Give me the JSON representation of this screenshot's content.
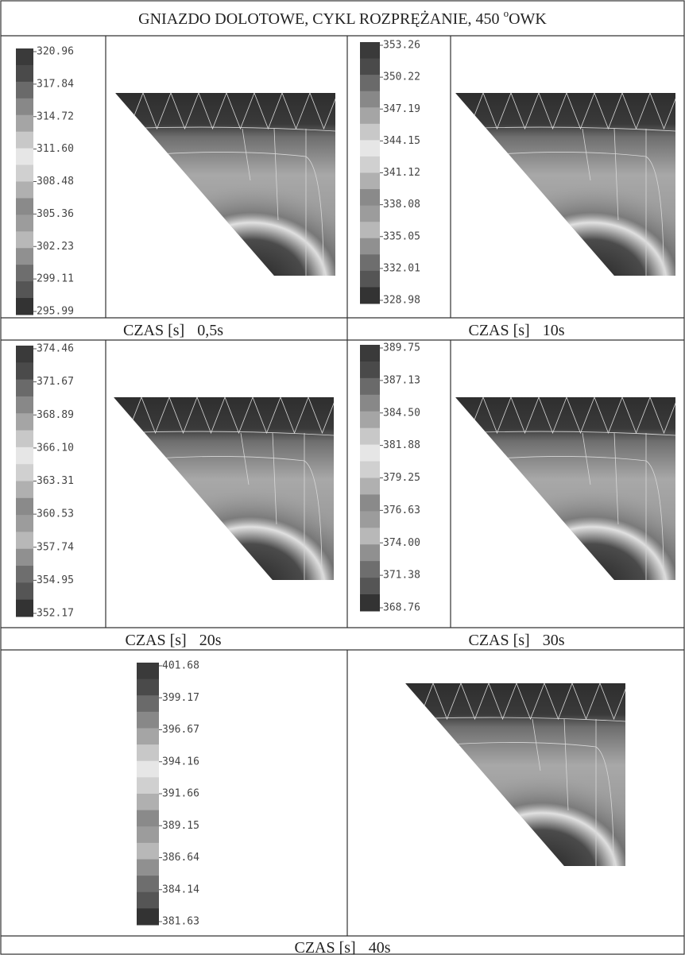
{
  "title": {
    "text": "GNIAZDO DOLOTOWE, CYKL ROZPRĘŻANIE, 450 ",
    "degree": "o",
    "unit": "OWK"
  },
  "caption_label": "CZAS [s]",
  "panels": [
    {
      "ticks": [
        "320.96",
        "317.84",
        "314.72",
        "311.60",
        "308.48",
        "305.36",
        "302.23",
        "299.11",
        "295.99"
      ],
      "time": "0,5s"
    },
    {
      "ticks": [
        "353.26",
        "350.22",
        "347.19",
        "344.15",
        "341.12",
        "338.08",
        "335.05",
        "332.01",
        "328.98"
      ],
      "time": "10s"
    },
    {
      "ticks": [
        "374.46",
        "371.67",
        "368.89",
        "366.10",
        "363.31",
        "360.53",
        "357.74",
        "354.95",
        "352.17"
      ],
      "time": "20s"
    },
    {
      "ticks": [
        "389.75",
        "387.13",
        "384.50",
        "381.88",
        "379.25",
        "376.63",
        "374.00",
        "371.38",
        "368.76"
      ],
      "time": "30s"
    },
    {
      "ticks": [
        "401.68",
        "399.17",
        "396.67",
        "394.16",
        "391.66",
        "389.15",
        "386.64",
        "384.14",
        "381.63"
      ],
      "time": "40s"
    }
  ]
}
